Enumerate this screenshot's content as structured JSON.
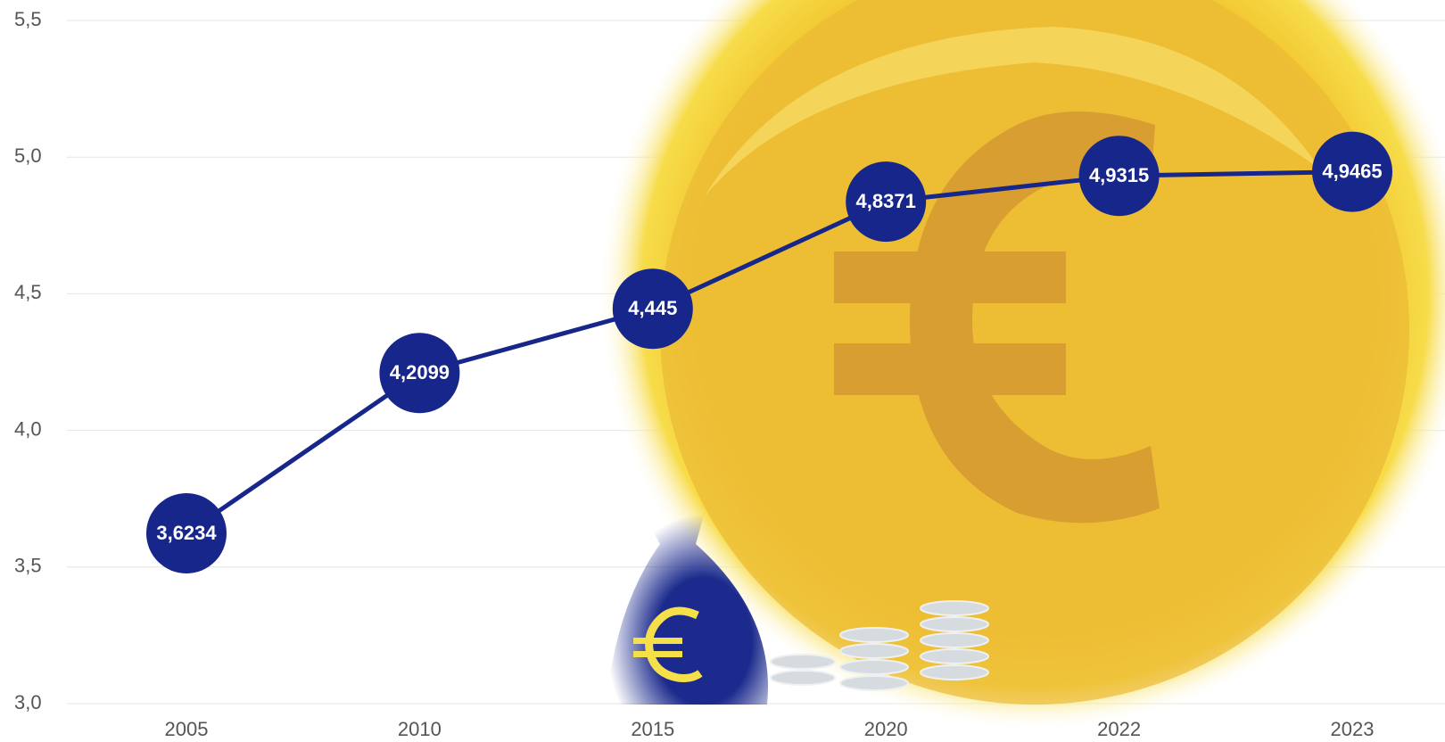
{
  "chart_data": {
    "type": "line",
    "categories": [
      "2005",
      "2010",
      "2015",
      "2020",
      "2022",
      "2023"
    ],
    "values": [
      3.6234,
      4.2099,
      4.445,
      4.8371,
      4.9315,
      4.9465
    ],
    "value_labels": [
      "3,6234",
      "4,2099",
      "4,445",
      "4,8371",
      "4,9315",
      "4,9465"
    ],
    "color": "#17268a",
    "ylim": [
      3.0,
      5.5
    ],
    "yticks": [
      {
        "value": 3.0,
        "label": "3,0"
      },
      {
        "value": 3.5,
        "label": "3,5"
      },
      {
        "value": 4.0,
        "label": "4,0"
      },
      {
        "value": 4.5,
        "label": "4,5"
      },
      {
        "value": 5.0,
        "label": "5,0"
      },
      {
        "value": 5.5,
        "label": "5,5"
      }
    ],
    "grid": true
  }
}
